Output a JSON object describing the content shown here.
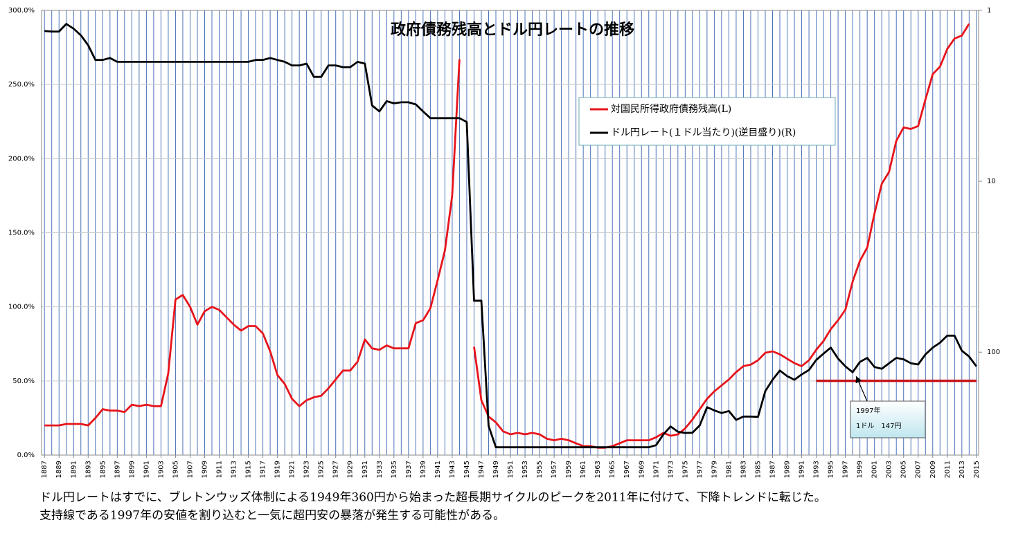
{
  "chart_data": {
    "type": "line",
    "title": "政府債務残高とドル円レートの推移",
    "x": [
      1887,
      1888,
      1889,
      1890,
      1891,
      1892,
      1893,
      1894,
      1895,
      1896,
      1897,
      1898,
      1899,
      1900,
      1901,
      1902,
      1903,
      1904,
      1905,
      1906,
      1907,
      1908,
      1909,
      1910,
      1911,
      1912,
      1913,
      1914,
      1915,
      1916,
      1917,
      1918,
      1919,
      1920,
      1921,
      1922,
      1923,
      1924,
      1925,
      1926,
      1927,
      1928,
      1929,
      1930,
      1931,
      1932,
      1933,
      1934,
      1935,
      1936,
      1937,
      1938,
      1939,
      1940,
      1941,
      1942,
      1943,
      1944,
      1945,
      1946,
      1947,
      1948,
      1949,
      1950,
      1951,
      1952,
      1953,
      1954,
      1955,
      1956,
      1957,
      1958,
      1959,
      1960,
      1961,
      1962,
      1963,
      1964,
      1965,
      1966,
      1967,
      1968,
      1969,
      1970,
      1971,
      1972,
      1973,
      1974,
      1975,
      1976,
      1977,
      1978,
      1979,
      1980,
      1981,
      1982,
      1983,
      1984,
      1985,
      1986,
      1987,
      1988,
      1989,
      1990,
      1991,
      1992,
      1993,
      1994,
      1995,
      1996,
      1997,
      1998,
      1999,
      2000,
      2001,
      2002,
      2003,
      2004,
      2005,
      2006,
      2007,
      2008,
      2009,
      2010,
      2011,
      2012,
      2013,
      2014,
      2015
    ],
    "series": [
      {
        "name": "対国民所得政府債務残高(L)",
        "color": "#e8141b",
        "axis": "y",
        "values": [
          20,
          20,
          20,
          21,
          21,
          21,
          20,
          25,
          31,
          30,
          30,
          29,
          34,
          33,
          34,
          33,
          33,
          55,
          105,
          108,
          100,
          88,
          97,
          100,
          98,
          93,
          88,
          84,
          87,
          87,
          82,
          70,
          54,
          48,
          38,
          33,
          37,
          39,
          40,
          45,
          51,
          57,
          57,
          63,
          78,
          72,
          71,
          74,
          72,
          72,
          72,
          89,
          91,
          99,
          118,
          138,
          175,
          267,
          null,
          73,
          37,
          26,
          22,
          16,
          14,
          15,
          14,
          15,
          14,
          11,
          10,
          11,
          10,
          8,
          6,
          6,
          5,
          5,
          6,
          8,
          10,
          10,
          10,
          10,
          12,
          15,
          13,
          14,
          18,
          24,
          31,
          38,
          43,
          47,
          51,
          56,
          60,
          61,
          64,
          69,
          70,
          68,
          65,
          62,
          60,
          64,
          71,
          77,
          85,
          91,
          98,
          117,
          131,
          140,
          163,
          183,
          191,
          212,
          221,
          220,
          222,
          240,
          257,
          262,
          274,
          281,
          283,
          291,
          null
        ]
      },
      {
        "name": "ドル円レート(１ドル当たり)(逆目盛り)(R)",
        "color": "#000000",
        "axis": "y2",
        "values": [
          1.32,
          1.33,
          1.33,
          1.2,
          1.28,
          1.4,
          1.6,
          1.95,
          1.95,
          1.9,
          2.0,
          2.0,
          2.0,
          2.0,
          2.0,
          2.0,
          2.0,
          2.0,
          2.0,
          2.0,
          2.0,
          2.0,
          2.0,
          2.0,
          2.0,
          2.0,
          2.0,
          2.0,
          2.0,
          1.95,
          1.95,
          1.9,
          1.95,
          2.0,
          2.1,
          2.1,
          2.05,
          2.45,
          2.45,
          2.1,
          2.1,
          2.15,
          2.15,
          2.0,
          2.05,
          3.6,
          3.9,
          3.4,
          3.5,
          3.45,
          3.45,
          3.55,
          3.9,
          4.27,
          4.27,
          4.27,
          4.27,
          4.27,
          4.5,
          50,
          50,
          270,
          360,
          360,
          360,
          360,
          360,
          360,
          360,
          360,
          360,
          360,
          360,
          360,
          360,
          360,
          360,
          360,
          360,
          360,
          360,
          360,
          360,
          360,
          350,
          303,
          272,
          292,
          297,
          296,
          268,
          210,
          219,
          227,
          221,
          249,
          238,
          238,
          239,
          169,
          145,
          128,
          138,
          145,
          135,
          127,
          111,
          102,
          94,
          109,
          121,
          131,
          114,
          108,
          122,
          125,
          116,
          108,
          110,
          116,
          118,
          103,
          94,
          88,
          80,
          80,
          98,
          106,
          121
        ]
      }
    ],
    "reference_line": {
      "axis": "y2",
      "value": 147,
      "x": [
        1993,
        2015
      ],
      "color": "#c8141b"
    },
    "annotation": {
      "lines": [
        "1997年",
        "1ドル　147円"
      ],
      "x": 1997,
      "y2": 147
    },
    "xlim": [
      1886.6,
      2015.3
    ],
    "xticks": [
      1887,
      1889,
      1891,
      1893,
      1895,
      1897,
      1899,
      1901,
      1903,
      1905,
      1907,
      1909,
      1911,
      1913,
      1915,
      1917,
      1919,
      1921,
      1923,
      1925,
      1927,
      1929,
      1931,
      1933,
      1935,
      1937,
      1939,
      1941,
      1943,
      1945,
      1947,
      1949,
      1951,
      1953,
      1955,
      1957,
      1959,
      1961,
      1963,
      1965,
      1967,
      1969,
      1971,
      1973,
      1975,
      1977,
      1979,
      1981,
      1983,
      1985,
      1987,
      1989,
      1991,
      1993,
      1995,
      1997,
      1999,
      2001,
      2003,
      2005,
      2007,
      2009,
      2011,
      2013,
      2015
    ],
    "ylim": [
      0,
      300
    ],
    "yticks": [
      {
        "value": 0,
        "label": "0.0%"
      },
      {
        "value": 50,
        "label": "50.0%"
      },
      {
        "value": 100,
        "label": "100.0%"
      },
      {
        "value": 150,
        "label": "150.0%"
      },
      {
        "value": 200,
        "label": "200.0%"
      },
      {
        "value": 250,
        "label": "250.0%"
      },
      {
        "value": 300,
        "label": "300.0%"
      }
    ],
    "y2lim": [
      1,
      400
    ],
    "y2ticks": [
      1,
      10,
      100
    ],
    "y2_log": true,
    "y2_inverted": true,
    "grid": true,
    "legend": "upper right",
    "notes": [
      "ドル円レートはすでに、ブレトンウッズ体制による1949年360円から始まった超長期サイクルのピークを2011年に付けて、下降トレンドに転じた。",
      "支持線である1997年の安値を割り込むと一気に超円安の暴落が発生する可能性がある。"
    ]
  }
}
